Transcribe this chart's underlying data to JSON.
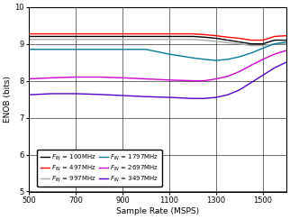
{
  "xlabel": "Sample Rate (MSPS)",
  "ylabel": "ENOB (bits)",
  "xlim": [
    500,
    1600
  ],
  "ylim": [
    5,
    10
  ],
  "xticks": [
    500,
    700,
    900,
    1100,
    1300,
    1500
  ],
  "yticks": [
    5,
    6,
    7,
    8,
    9,
    10
  ],
  "series": [
    {
      "name": "100MHz",
      "color": "#000000",
      "lw": 1.0,
      "x": [
        500,
        600,
        700,
        800,
        900,
        1000,
        1100,
        1200,
        1250,
        1300,
        1350,
        1400,
        1450,
        1500,
        1550,
        1600
      ],
      "y": [
        9.2,
        9.2,
        9.2,
        9.2,
        9.2,
        9.2,
        9.2,
        9.2,
        9.18,
        9.15,
        9.1,
        9.05,
        9.0,
        9.0,
        9.1,
        9.1
      ]
    },
    {
      "name": "497MHz",
      "color": "#ff0000",
      "lw": 1.0,
      "x": [
        500,
        600,
        700,
        800,
        900,
        1000,
        1100,
        1200,
        1250,
        1300,
        1350,
        1400,
        1450,
        1500,
        1550,
        1600
      ],
      "y": [
        9.27,
        9.27,
        9.27,
        9.27,
        9.27,
        9.27,
        9.27,
        9.27,
        9.25,
        9.22,
        9.18,
        9.15,
        9.1,
        9.1,
        9.2,
        9.22
      ]
    },
    {
      "name": "997MHz",
      "color": "#aaaaaa",
      "lw": 1.0,
      "x": [
        500,
        600,
        700,
        800,
        900,
        1000,
        1100,
        1200,
        1250,
        1300,
        1350,
        1400,
        1450,
        1500,
        1550,
        1600
      ],
      "y": [
        9.12,
        9.12,
        9.12,
        9.12,
        9.12,
        9.12,
        9.12,
        9.12,
        9.1,
        9.07,
        9.03,
        9.0,
        8.95,
        8.95,
        9.0,
        9.0
      ]
    },
    {
      "name": "1797MHz",
      "color": "#007b9a",
      "lw": 1.0,
      "x": [
        500,
        600,
        700,
        800,
        900,
        1000,
        1100,
        1200,
        1250,
        1300,
        1350,
        1400,
        1450,
        1500,
        1550,
        1600
      ],
      "y": [
        8.85,
        8.85,
        8.85,
        8.85,
        8.85,
        8.85,
        8.72,
        8.62,
        8.58,
        8.55,
        8.58,
        8.65,
        8.75,
        8.88,
        9.0,
        9.05
      ]
    },
    {
      "name": "2697MHz",
      "color": "#cc00cc",
      "lw": 1.0,
      "x": [
        500,
        600,
        700,
        800,
        900,
        1000,
        1100,
        1200,
        1250,
        1300,
        1350,
        1400,
        1450,
        1500,
        1550,
        1600
      ],
      "y": [
        8.05,
        8.08,
        8.1,
        8.1,
        8.08,
        8.05,
        8.02,
        8.0,
        8.0,
        8.05,
        8.12,
        8.25,
        8.42,
        8.58,
        8.72,
        8.82
      ]
    },
    {
      "name": "3497MHz",
      "color": "#5500cc",
      "lw": 1.0,
      "x": [
        500,
        600,
        700,
        800,
        900,
        1000,
        1100,
        1200,
        1250,
        1300,
        1350,
        1400,
        1450,
        1500,
        1550,
        1600
      ],
      "y": [
        7.62,
        7.65,
        7.65,
        7.63,
        7.6,
        7.57,
        7.55,
        7.52,
        7.52,
        7.55,
        7.62,
        7.75,
        7.95,
        8.15,
        8.35,
        8.5
      ]
    }
  ],
  "legend_items": [
    {
      "label": "$F_{IN}$ = 100MHz",
      "color": "#000000"
    },
    {
      "label": "$F_{IN}$ = 497MHz",
      "color": "#ff0000"
    },
    {
      "label": "$F_{IN}$ = 997MHz",
      "color": "#aaaaaa"
    },
    {
      "label": "$F_{IN}$ = 1797MHz",
      "color": "#007b9a"
    },
    {
      "label": "$F_{IN}$ = 2697MHz",
      "color": "#cc00cc"
    },
    {
      "label": "$F_{IN}$ = 3497MHz",
      "color": "#5500cc"
    }
  ],
  "legend_fontsize": 5.0,
  "axis_fontsize": 6.5,
  "tick_fontsize": 6.0,
  "bg_color": "#ffffff"
}
